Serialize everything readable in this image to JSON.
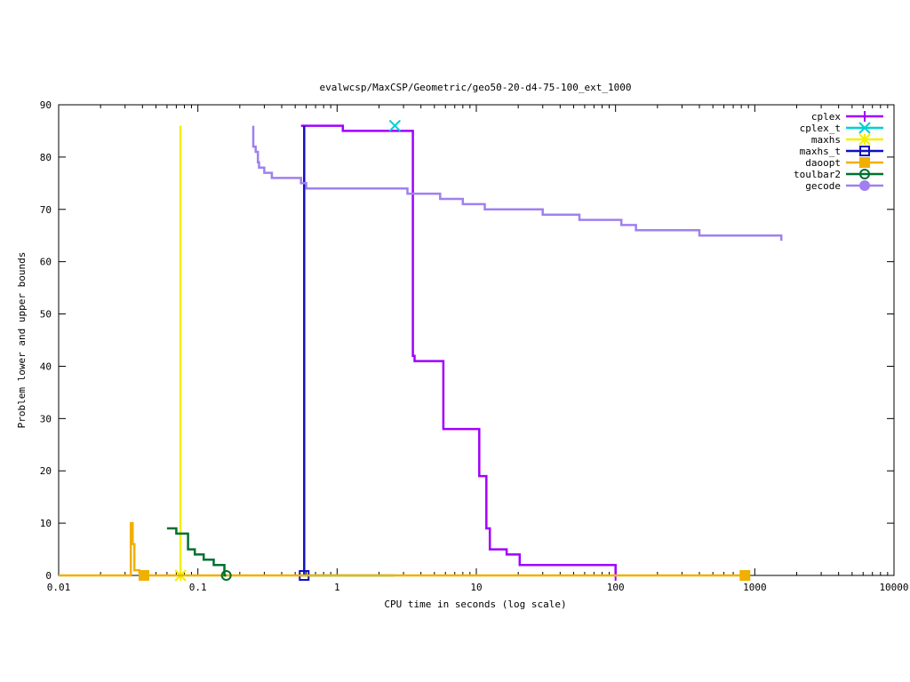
{
  "chart_data": {
    "type": "line",
    "title": "evalwcsp/MaxCSP/Geometric/geo50-20-d4-75-100_ext_1000",
    "xlabel": "CPU time in seconds (log scale)",
    "ylabel": "Problem lower and upper bounds",
    "xscale": "log",
    "xlim": [
      0.01,
      10000
    ],
    "ylim": [
      0,
      90
    ],
    "xticks": [
      0.01,
      0.1,
      1,
      10,
      100,
      1000,
      10000
    ],
    "xtick_labels": [
      "0.01",
      "0.1",
      "1",
      "10",
      "100",
      "1000",
      "10000"
    ],
    "yticks": [
      0,
      10,
      20,
      30,
      40,
      50,
      60,
      70,
      80,
      90
    ],
    "ytick_labels": [
      "0",
      "10",
      "20",
      "30",
      "40",
      "50",
      "60",
      "70",
      "80",
      "90"
    ],
    "legend_position": "top-right",
    "grid": false,
    "series": [
      {
        "name": "cplex",
        "color": "#a000ff",
        "marker": "plus",
        "steps": [
          [
            0.55,
            86
          ],
          [
            1.1,
            86
          ],
          [
            1.1,
            85
          ],
          [
            3.5,
            85
          ],
          [
            3.5,
            42
          ],
          [
            3.6,
            42
          ],
          [
            3.6,
            41
          ],
          [
            5.8,
            41
          ],
          [
            5.8,
            28
          ],
          [
            10.5,
            28
          ],
          [
            10.5,
            19
          ],
          [
            11.8,
            19
          ],
          [
            11.8,
            9
          ],
          [
            12.5,
            9
          ],
          [
            12.5,
            5
          ],
          [
            16.5,
            5
          ],
          [
            16.5,
            4
          ],
          [
            20.5,
            4
          ],
          [
            20.5,
            2
          ],
          [
            100,
            2
          ],
          [
            100,
            0
          ]
        ],
        "marker_at": [
          [
            100,
            0
          ]
        ]
      },
      {
        "name": "cplex_t",
        "color": "#00d0d0",
        "marker": "x",
        "steps": [
          [
            0.55,
            0
          ],
          [
            2.6,
            0
          ]
        ],
        "marker_at": [
          [
            2.6,
            86
          ]
        ]
      },
      {
        "name": "maxhs",
        "color": "#f0f000",
        "marker": "star",
        "steps": [
          [
            0.075,
            86
          ],
          [
            0.075,
            0
          ]
        ],
        "marker_at": [
          [
            0.075,
            0
          ]
        ]
      },
      {
        "name": "maxhs_t",
        "color": "#1010c0",
        "marker": "square",
        "steps": [
          [
            0.58,
            86
          ],
          [
            0.58,
            0
          ]
        ],
        "marker_at": [
          [
            0.58,
            0
          ]
        ]
      },
      {
        "name": "daoopt",
        "color": "#f0b000",
        "marker": "filled-square",
        "steps": [
          [
            0.01,
            0
          ],
          [
            0.033,
            0
          ],
          [
            0.033,
            10
          ],
          [
            0.034,
            10
          ],
          [
            0.034,
            6
          ],
          [
            0.035,
            6
          ],
          [
            0.035,
            1
          ],
          [
            0.038,
            1
          ],
          [
            0.038,
            0.5
          ],
          [
            0.041,
            0.5
          ],
          [
            0.041,
            0
          ],
          [
            850,
            0
          ]
        ],
        "marker_at": [
          [
            0.041,
            0
          ],
          [
            850,
            0
          ]
        ]
      },
      {
        "name": "toulbar2",
        "color": "#007030",
        "marker": "circle",
        "steps": [
          [
            0.06,
            9
          ],
          [
            0.07,
            9
          ],
          [
            0.07,
            8
          ],
          [
            0.085,
            8
          ],
          [
            0.085,
            5
          ],
          [
            0.095,
            5
          ],
          [
            0.095,
            4
          ],
          [
            0.11,
            4
          ],
          [
            0.11,
            3
          ],
          [
            0.13,
            3
          ],
          [
            0.13,
            2
          ],
          [
            0.155,
            2
          ],
          [
            0.155,
            0
          ],
          [
            0.16,
            0
          ]
        ],
        "marker_at": [
          [
            0.16,
            0
          ]
        ]
      },
      {
        "name": "gecode",
        "color": "#a080f0",
        "marker": "filled-circle",
        "steps": [
          [
            0.25,
            86
          ],
          [
            0.25,
            82
          ],
          [
            0.26,
            82
          ],
          [
            0.26,
            81
          ],
          [
            0.27,
            81
          ],
          [
            0.27,
            79
          ],
          [
            0.275,
            79
          ],
          [
            0.275,
            78
          ],
          [
            0.3,
            78
          ],
          [
            0.3,
            77
          ],
          [
            0.34,
            77
          ],
          [
            0.34,
            76
          ],
          [
            0.55,
            76
          ],
          [
            0.55,
            75
          ],
          [
            0.6,
            75
          ],
          [
            0.6,
            74
          ],
          [
            3.2,
            74
          ],
          [
            3.2,
            73
          ],
          [
            5.5,
            73
          ],
          [
            5.5,
            72
          ],
          [
            8,
            72
          ],
          [
            8,
            71
          ],
          [
            11.5,
            71
          ],
          [
            11.5,
            70
          ],
          [
            30,
            70
          ],
          [
            30,
            69
          ],
          [
            55,
            69
          ],
          [
            55,
            68
          ],
          [
            110,
            68
          ],
          [
            110,
            67
          ],
          [
            140,
            67
          ],
          [
            140,
            66
          ],
          [
            400,
            66
          ],
          [
            400,
            65
          ],
          [
            1550,
            65
          ],
          [
            1550,
            64
          ]
        ],
        "marker_at": []
      }
    ]
  }
}
